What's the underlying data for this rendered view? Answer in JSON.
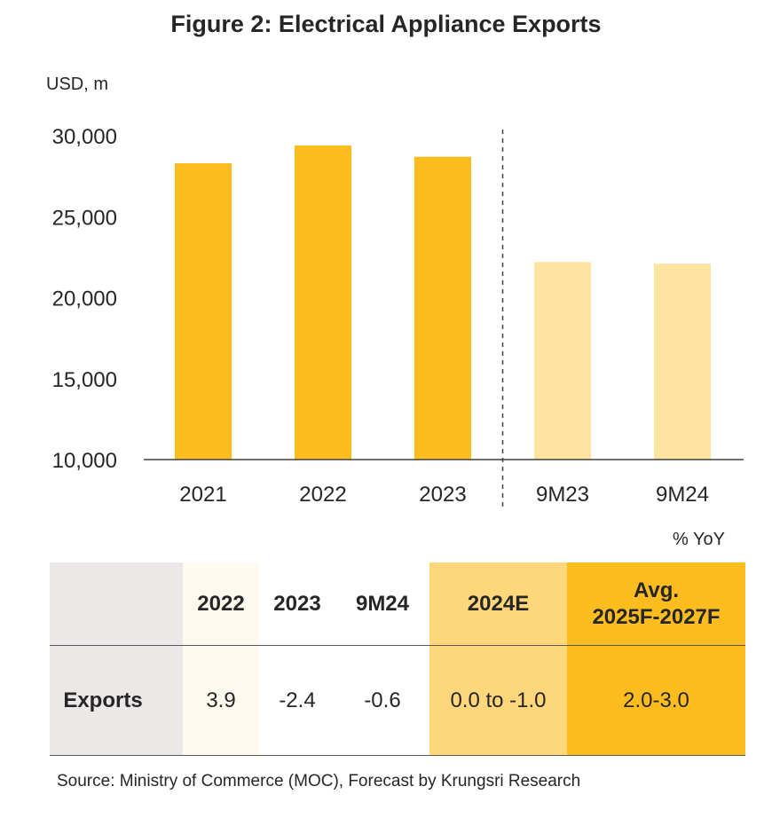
{
  "title": "Figure 2: Electrical Appliance Exports",
  "chart_data": {
    "type": "bar",
    "title": "Figure 2: Electrical Appliance Exports",
    "ylabel": "USD, m",
    "ylim": [
      10000,
      30000
    ],
    "yticks": [
      "10,000",
      "15,000",
      "20,000",
      "25,000",
      "30,000"
    ],
    "categories": [
      "2021",
      "2022",
      "2023",
      "9M23",
      "9M24"
    ],
    "values": [
      28300,
      29400,
      28700,
      22200,
      22100
    ],
    "colors": [
      "#fdbd1f",
      "#fdbd1f",
      "#fdbd1f",
      "#fde3a0",
      "#fde3a0"
    ],
    "divider": "dashed line between 2023 and 9M23",
    "grid": false,
    "legend": "none"
  },
  "table": {
    "unit": "% YoY",
    "row_label": "Exports",
    "columns": [
      {
        "header": "2022",
        "value": "3.9",
        "bg": "#fffaf0"
      },
      {
        "header": "2023",
        "value": "-2.4",
        "bg": "#ffffff"
      },
      {
        "header": "9M24",
        "value": "-0.6",
        "bg": "#ffffff"
      },
      {
        "header": "2024E",
        "value": "0.0 to -1.0",
        "bg": "#fdd77a"
      },
      {
        "header_line1": "Avg.",
        "header_line2": "2025F-2027F",
        "value": "2.0-3.0",
        "bg": "#fdbd1f"
      }
    ],
    "label_bg": "#ede8e8"
  },
  "source": "Source: Ministry of Commerce (MOC), Forecast by Krungsri Research"
}
